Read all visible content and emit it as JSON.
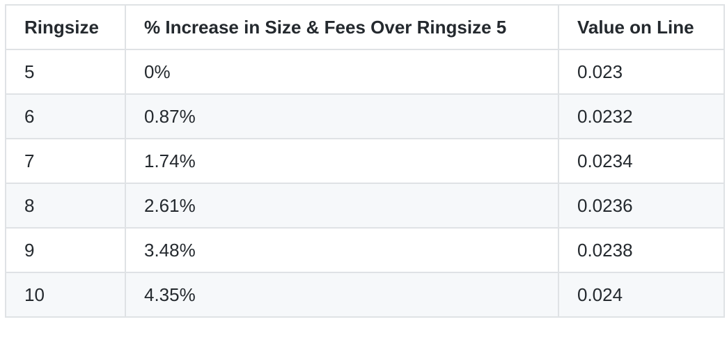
{
  "table": {
    "headers": [
      "Ringsize",
      "% Increase in Size & Fees Over Ringsize 5",
      "Value on Line"
    ],
    "rows": [
      [
        "5",
        "0%",
        "0.023"
      ],
      [
        "6",
        "0.87%",
        "0.0232"
      ],
      [
        "7",
        "1.74%",
        "0.0234"
      ],
      [
        "8",
        "2.61%",
        "0.0236"
      ],
      [
        "9",
        "3.48%",
        "0.0238"
      ],
      [
        "10",
        "4.35%",
        "0.024"
      ]
    ]
  },
  "colors": {
    "border": "#dfe2e5",
    "stripe": "#f6f8fa",
    "text": "#24292e",
    "background": "#ffffff"
  }
}
